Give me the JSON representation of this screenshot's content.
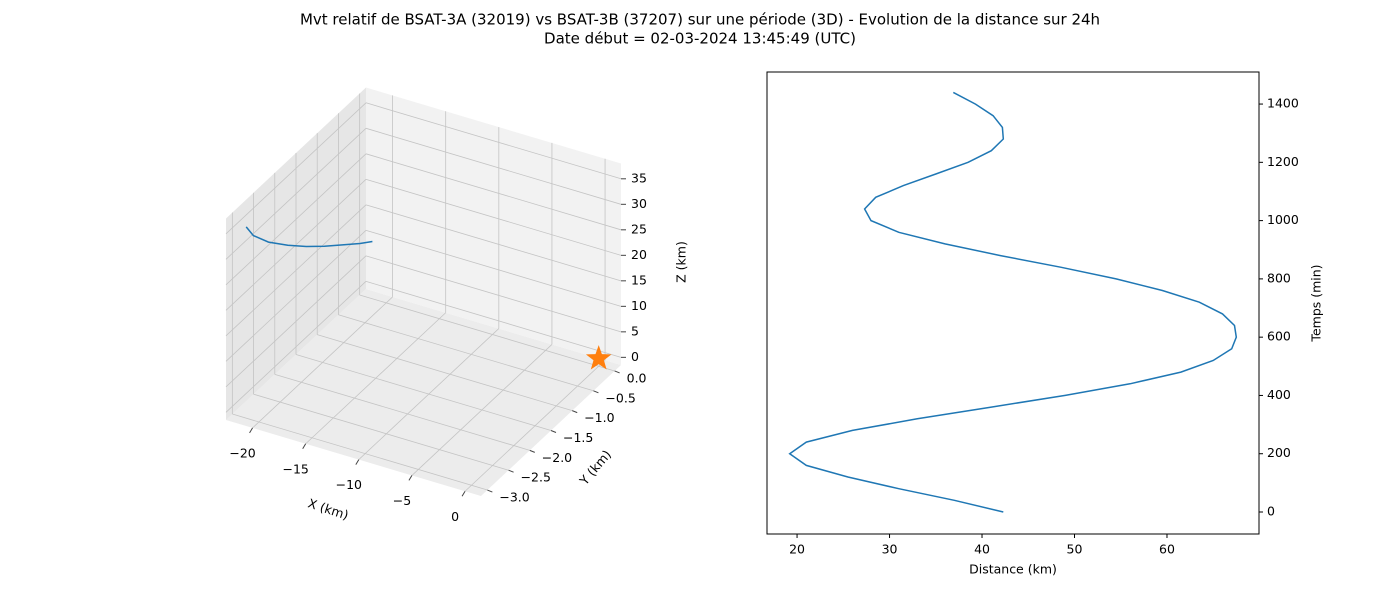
{
  "title": "Mvt relatif de BSAT-3A (32019) vs BSAT-3B (37207) sur une période (3D) - Evolution de la distance sur 24h",
  "subtitle": "Date début = 02-03-2024 13:45:49 (UTC)",
  "chart_data": [
    {
      "type": "line3d",
      "xlabel": "X (km)",
      "ylabel": "Y (km)",
      "zlabel": "Z (km)",
      "x": [
        -21,
        -20.6,
        -19.5,
        -18,
        -16.5,
        -15,
        -13.5,
        -12,
        -11
      ],
      "y": [
        -3.05,
        -2.98,
        -2.9,
        -2.82,
        -2.76,
        -2.71,
        -2.66,
        -2.62,
        -2.58
      ],
      "z": [
        36.5,
        34.5,
        33.3,
        33,
        33.2,
        33.8,
        34.6,
        35.5,
        36.2
      ],
      "color": "#1f77b4",
      "markers": [
        {
          "x": 0,
          "y": 0,
          "z": 0,
          "color": "#ff7f0e",
          "marker": "star"
        }
      ],
      "xlim": [
        -22.5,
        1.5
      ],
      "ylim": [
        -3.15,
        0.15
      ],
      "zlim": [
        -1.5,
        38
      ],
      "xticks": [
        {
          "value": -20,
          "label": "−20"
        },
        {
          "value": -15,
          "label": "−15"
        },
        {
          "value": -10,
          "label": "−10"
        },
        {
          "value": -5,
          "label": "−5"
        },
        0
      ],
      "yticks": [
        {
          "value": 0,
          "label": "0.0"
        },
        {
          "value": -0.5,
          "label": "−0.5"
        },
        {
          "value": -1,
          "label": "−1.0"
        },
        {
          "value": -1.5,
          "label": "−1.5"
        },
        {
          "value": -2,
          "label": "−2.0"
        },
        {
          "value": -2.5,
          "label": "−2.5"
        },
        {
          "value": -3,
          "label": "−3.0"
        }
      ],
      "zticks": [
        0,
        5,
        10,
        15,
        20,
        25,
        30,
        35
      ],
      "grid": true
    },
    {
      "type": "line",
      "xlabel": "Distance (km)",
      "ylabel": "Temps (min)",
      "y": [
        0,
        40,
        80,
        120,
        160,
        200,
        240,
        280,
        320,
        360,
        400,
        440,
        480,
        520,
        560,
        600,
        640,
        680,
        720,
        760,
        800,
        840,
        880,
        920,
        960,
        1000,
        1040,
        1080,
        1120,
        1160,
        1200,
        1240,
        1280,
        1320,
        1360,
        1400,
        1440
      ],
      "values": [
        42.3,
        37,
        31,
        25.5,
        21,
        19.2,
        21,
        26,
        33,
        41,
        49,
        56,
        61.5,
        65,
        67,
        67.5,
        67.3,
        66,
        63.5,
        59.5,
        54.5,
        48.5,
        42,
        36,
        31,
        28,
        27.3,
        28.5,
        31.5,
        35,
        38.5,
        41,
        42.3,
        42.2,
        41.2,
        39.3,
        36.9
      ],
      "color": "#1f77b4",
      "xlim": [
        16.75,
        69.95
      ],
      "xticks": [
        20,
        30,
        40,
        50,
        60
      ],
      "ylim": [
        -75.5,
        1510
      ],
      "yticks": [
        0,
        200,
        400,
        600,
        800,
        1000,
        1200,
        1400
      ],
      "yaxis_side": "right",
      "grid": false
    }
  ]
}
